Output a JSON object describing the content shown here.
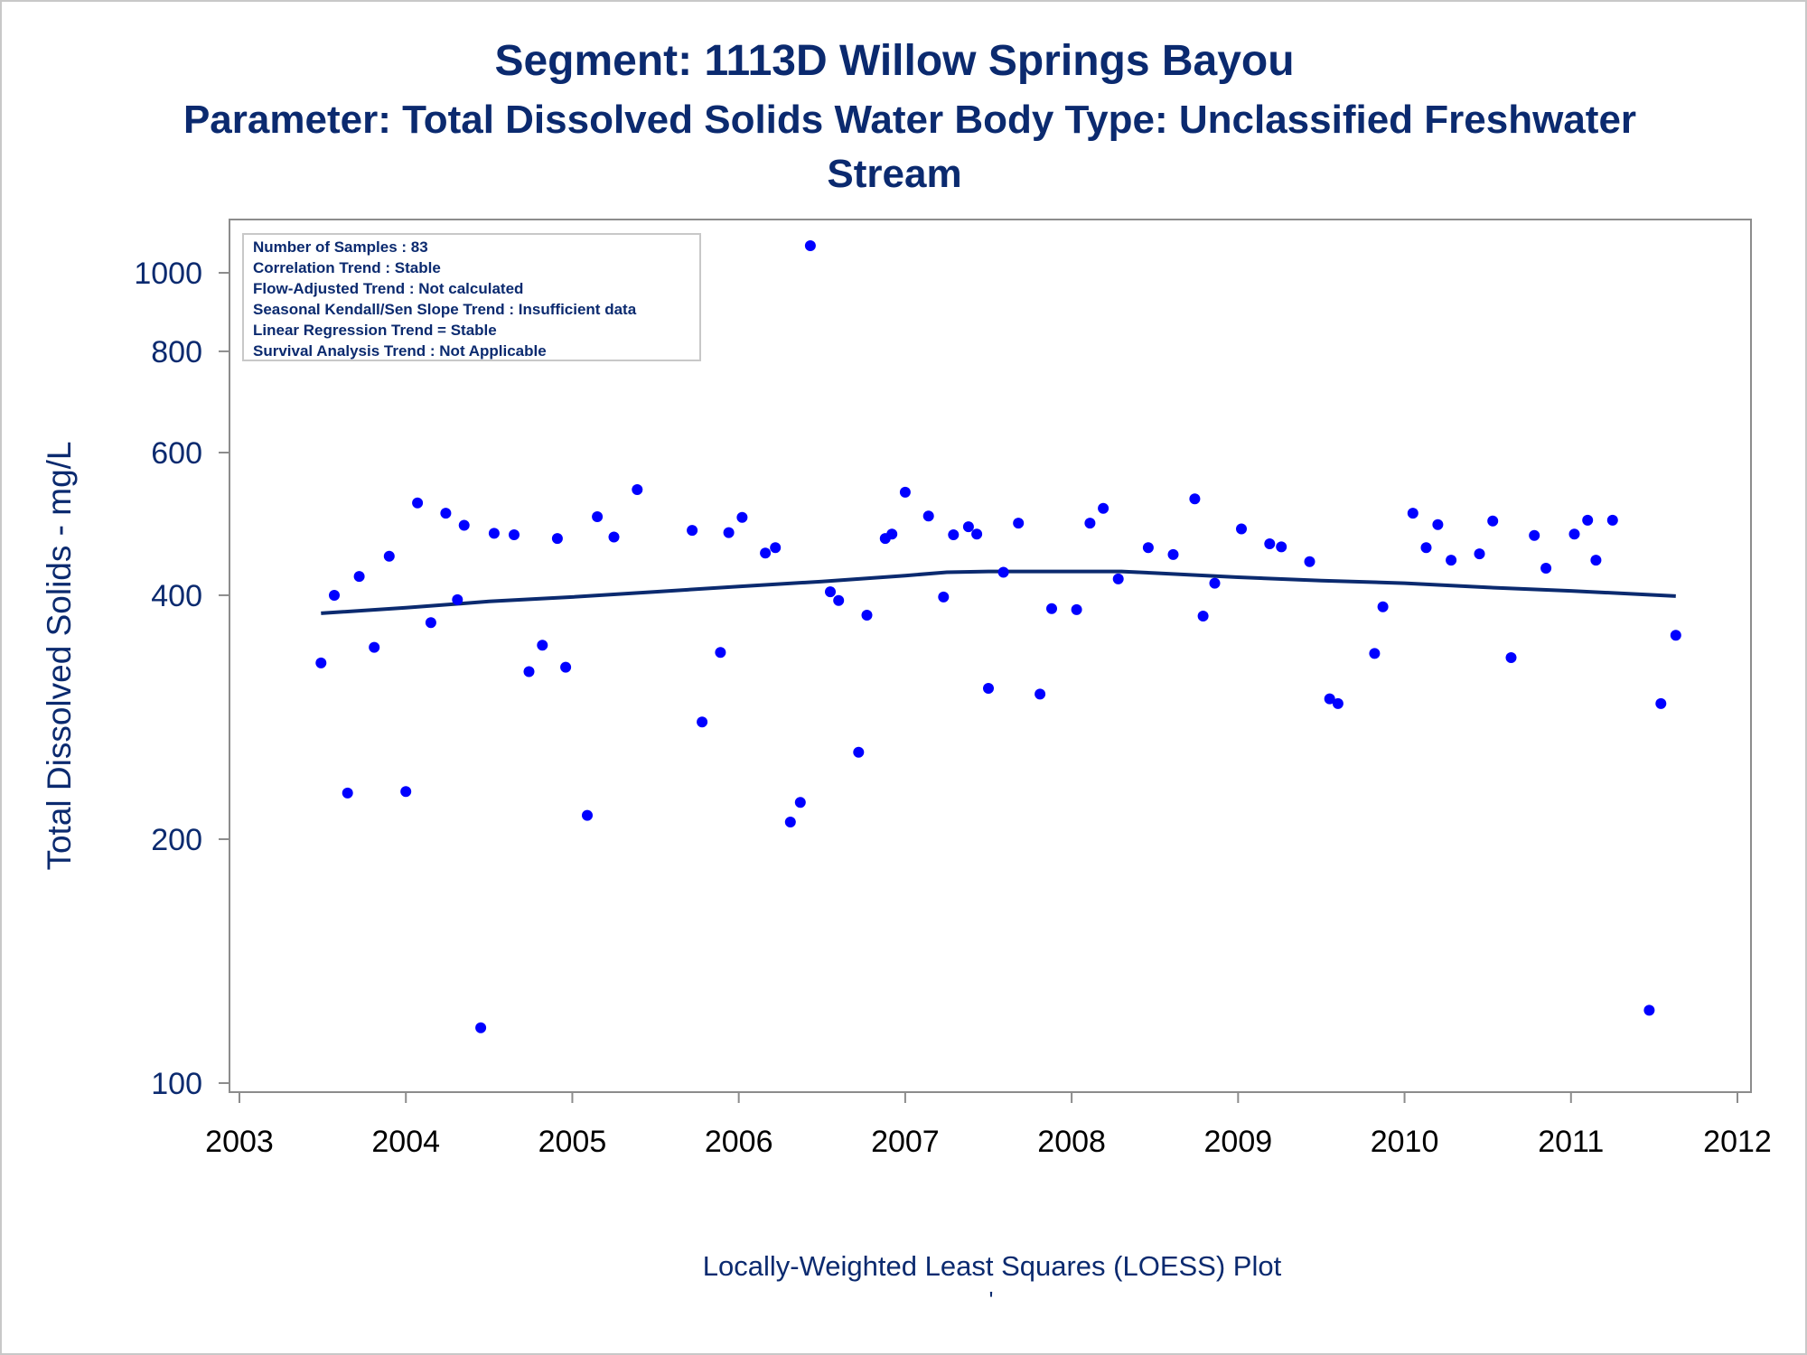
{
  "chart_data": {
    "type": "scatter",
    "title": "Segment: 1113D  Willow Springs Bayou",
    "subtitle_line1": "Parameter: Total Dissolved Solids   Water Body Type: Unclassified Freshwater",
    "subtitle_line2": "Stream",
    "ylabel": "Total Dissolved Solids - mg/L",
    "footnote": "Locally-Weighted Least Squares (LOESS) Plot",
    "footnote_mark": "'",
    "y_scale": "log",
    "ylim": [
      100,
      1100
    ],
    "xlim": [
      2003,
      2012
    ],
    "y_ticks": [
      100,
      200,
      400,
      600,
      800,
      1000
    ],
    "x_ticks": [
      2003,
      2004,
      2005,
      2006,
      2007,
      2008,
      2009,
      2010,
      2011,
      2012
    ],
    "grid": false,
    "stats_box": {
      "lines": [
        "Number of Samples : 83",
        "Correlation Trend : Stable",
        "Flow-Adjusted Trend : Not calculated",
        "Seasonal Kendall/Sen Slope Trend : Insufficient data",
        "Linear Regression Trend = Stable",
        "Survival Analysis Trend : Not Applicable"
      ],
      "placement": "top-left"
    },
    "colors": {
      "points": "#0000ff",
      "loess": "#0b2a6f",
      "text": "#0b2a6f",
      "axes": "#8c8c8c"
    },
    "series": [
      {
        "kind": "points",
        "x": [
          2003.49,
          2003.57,
          2003.65,
          2003.72,
          2003.81,
          2003.9,
          2004.0,
          2004.07,
          2004.15,
          2004.24,
          2004.31,
          2004.35,
          2004.45,
          2004.53,
          2004.65,
          2004.74,
          2004.82,
          2004.91,
          2004.96,
          2005.09,
          2005.15,
          2005.25,
          2005.39,
          2005.72,
          2005.78,
          2005.89,
          2005.94,
          2006.02,
          2006.16,
          2006.22,
          2006.31,
          2006.37,
          2006.43,
          2006.55,
          2006.6,
          2006.72,
          2006.77,
          2006.88,
          2006.92,
          2007.0,
          2007.14,
          2007.23,
          2007.29,
          2007.38,
          2007.43,
          2007.5,
          2007.59,
          2007.68,
          2007.81,
          2007.88,
          2008.03,
          2008.11,
          2008.19,
          2008.28,
          2008.46,
          2008.61,
          2008.74,
          2008.79,
          2008.86,
          2009.02,
          2009.19,
          2009.26,
          2009.43,
          2009.55,
          2009.6,
          2009.82,
          2009.87,
          2010.05,
          2010.13,
          2010.2,
          2010.28,
          2010.45,
          2010.53,
          2010.64,
          2010.78,
          2010.85,
          2011.02,
          2011.1,
          2011.15,
          2011.25,
          2011.47,
          2011.54,
          2011.63
        ],
        "y": [
          330,
          400,
          228,
          422,
          345,
          447,
          229,
          520,
          370,
          505,
          395,
          488,
          117,
          477,
          475,
          322,
          347,
          470,
          326,
          214,
          500,
          472,
          540,
          481,
          279,
          340,
          478,
          499,
          451,
          458,
          210,
          222,
          1080,
          404,
          394,
          256,
          378,
          470,
          476,
          536,
          501,
          398,
          475,
          486,
          476,
          307,
          427,
          491,
          302,
          385,
          384,
          491,
          512,
          419,
          458,
          449,
          526,
          377,
          414,
          483,
          463,
          459,
          440,
          298,
          294,
          339,
          387,
          505,
          458,
          489,
          442,
          450,
          494,
          335,
          474,
          432,
          476,
          495,
          442,
          495,
          123,
          294,
          357
        ]
      },
      {
        "kind": "loess",
        "name": "",
        "x": [
          2003.49,
          2004.0,
          2004.5,
          2005.0,
          2005.5,
          2006.0,
          2006.5,
          2007.0,
          2007.25,
          2007.5,
          2008.0,
          2008.3,
          2008.5,
          2009.0,
          2009.5,
          2010.0,
          2010.5,
          2011.0,
          2011.63
        ],
        "y": [
          380,
          386,
          393,
          398,
          404,
          410,
          416,
          423,
          427,
          428,
          428,
          428,
          426,
          421,
          417,
          414,
          409,
          405,
          399
        ]
      }
    ]
  }
}
